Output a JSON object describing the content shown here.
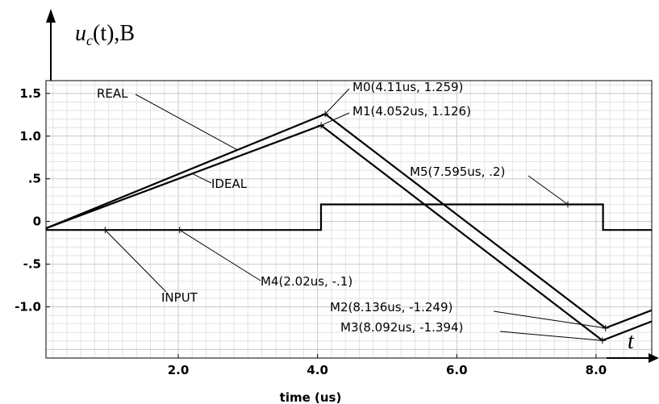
{
  "chart_data": {
    "type": "line",
    "xlabel": "time (us)",
    "ylabel": "u",
    "ylabel_sub": "c",
    "ylabel_paren": "(t),B",
    "axis_t_label": "t",
    "xlim": [
      0.1,
      8.8
    ],
    "ylim": [
      -1.6,
      1.65
    ],
    "x_ticks": [
      {
        "value": 2.0,
        "label": "2.0"
      },
      {
        "value": 4.0,
        "label": "4.0"
      },
      {
        "value": 6.0,
        "label": "6.0"
      },
      {
        "value": 8.0,
        "label": "8.0"
      }
    ],
    "y_ticks": [
      {
        "value": 1.5,
        "label": "1.5"
      },
      {
        "value": 1.0,
        "label": "1.0"
      },
      {
        "value": 0.5,
        "label": ".5"
      },
      {
        "value": 0.0,
        "label": "0"
      },
      {
        "value": -0.5,
        "label": "-.5"
      },
      {
        "value": -1.0,
        "label": "-1.0"
      }
    ],
    "series": [
      {
        "name": "REAL",
        "x": [
          0.1,
          4.11,
          8.136,
          8.8
        ],
        "y": [
          -0.08,
          1.259,
          -1.249,
          -1.04
        ]
      },
      {
        "name": "IDEAL",
        "x": [
          0.1,
          4.052,
          8.092,
          8.8
        ],
        "y": [
          -0.08,
          1.126,
          -1.394,
          -1.17
        ]
      },
      {
        "name": "INPUT",
        "x": [
          0.1,
          4.05,
          4.05,
          8.1,
          8.1,
          8.8
        ],
        "y": [
          -0.1,
          -0.1,
          0.2,
          0.2,
          -0.1,
          -0.1
        ]
      }
    ],
    "annotations": [
      {
        "id": "m0",
        "text": "M0(4.11us, 1.259)",
        "x": 4.11,
        "y": 1.259
      },
      {
        "id": "m1",
        "text": "M1(4.052us, 1.126)",
        "x": 4.052,
        "y": 1.126
      },
      {
        "id": "m5",
        "text": "M5(7.595us, .2)",
        "x": 7.595,
        "y": 0.2
      },
      {
        "id": "m4",
        "text": "M4(2.02us, -.1)",
        "x": 2.02,
        "y": -0.1
      },
      {
        "id": "m2",
        "text": "M2(8.136us, -1.249)",
        "x": 8.136,
        "y": -1.249
      },
      {
        "id": "m3",
        "text": "M3(8.092us, -1.394)",
        "x": 8.092,
        "y": -1.394
      }
    ]
  }
}
